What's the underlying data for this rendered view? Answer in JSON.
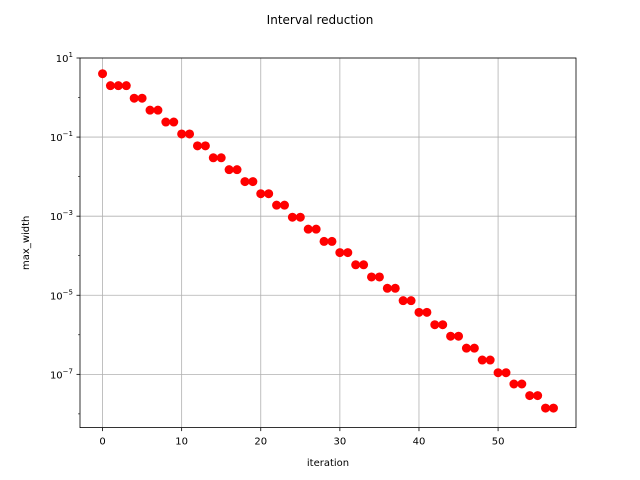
{
  "chart_data": {
    "type": "scatter",
    "title": "Interval reduction",
    "xlabel": "iteration",
    "ylabel": "max_width",
    "xlim": [
      -2.85,
      59.85
    ],
    "ylim": [
      4.5e-09,
      10
    ],
    "yscale": "log",
    "grid": true,
    "marker_color": "#ff0000",
    "x_ticks": [
      0,
      10,
      20,
      30,
      40,
      50
    ],
    "y_ticks": [
      {
        "value": 10,
        "base": "10",
        "exp": "1"
      },
      {
        "value": 0.1,
        "base": "10",
        "exp": "−1"
      },
      {
        "value": 0.001,
        "base": "10",
        "exp": "−3"
      },
      {
        "value": 1e-05,
        "base": "10",
        "exp": "−5"
      },
      {
        "value": 1e-07,
        "base": "10",
        "exp": "−7"
      }
    ],
    "x": [
      0,
      1,
      2,
      3,
      4,
      5,
      6,
      7,
      8,
      9,
      10,
      11,
      12,
      13,
      14,
      15,
      16,
      17,
      18,
      19,
      20,
      21,
      22,
      23,
      24,
      25,
      26,
      27,
      28,
      29,
      30,
      31,
      32,
      33,
      34,
      35,
      36,
      37,
      38,
      39,
      40,
      41,
      42,
      43,
      44,
      45,
      46,
      47,
      48,
      49,
      50,
      51,
      52,
      53,
      54,
      55,
      56,
      57
    ],
    "y": [
      4.0,
      2.0,
      2.0,
      2.0,
      0.96,
      0.96,
      0.48,
      0.48,
      0.24,
      0.24,
      0.12,
      0.12,
      0.06,
      0.06,
      0.03,
      0.03,
      0.015,
      0.015,
      0.0075,
      0.0075,
      0.0037,
      0.0037,
      0.0019,
      0.0019,
      0.00094,
      0.00094,
      0.00047,
      0.00047,
      0.00023,
      0.00023,
      0.00012,
      0.00012,
      5.9e-05,
      5.9e-05,
      2.9e-05,
      2.9e-05,
      1.5e-05,
      1.5e-05,
      7.3e-06,
      7.3e-06,
      3.7e-06,
      3.7e-06,
      1.8e-06,
      1.8e-06,
      9.2e-07,
      9.2e-07,
      4.6e-07,
      4.6e-07,
      2.3e-07,
      2.3e-07,
      1.1e-07,
      1.1e-07,
      5.7e-08,
      5.7e-08,
      2.9e-08,
      2.9e-08,
      1.4e-08,
      1.4e-08
    ]
  }
}
